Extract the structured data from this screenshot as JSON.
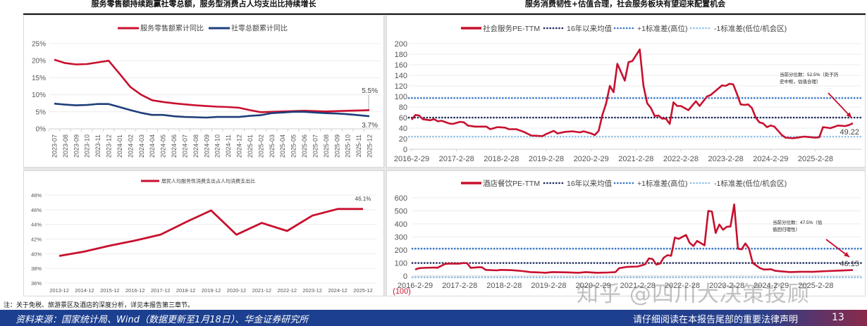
{
  "titles": {
    "left": "服务零售额持续跑赢社零总额，服务型消费占人均支出比持续增长",
    "right": "服务消费韧性+估值合理，社会服务板块有望迎来配置机会"
  },
  "note": "注：关于免税、旅游景区及酒店的深度分析，详见本报告第三章节。",
  "footer": {
    "source": "资料来源：国家统计局、Wind（数据更新至1月18日）、华金证券研究所",
    "legal": "请仔细阅读在本报告尾部的重要法律声明",
    "page_number": "13"
  },
  "watermark": "知乎 @四川大决策投顾",
  "colors": {
    "red": "#c8102e",
    "navy": "#1f3f7a",
    "mean": "#1b2a5c",
    "plus_sd": "#3a78c9",
    "minus_sd": "#8fc0e8"
  },
  "chart_data": [
    {
      "type": "line",
      "categories": [
        "2023-07",
        "2023-08",
        "2023-09",
        "2023-10",
        "2023-11",
        "2023-12",
        "2024-01",
        "2024-02",
        "2024-03",
        "2024-04",
        "2024-05",
        "2024-06",
        "2024-07",
        "2024-08",
        "2024-09",
        "2024-10",
        "2024-11",
        "2024-12",
        "2025-01",
        "2025-02",
        "2025-03",
        "2025-04",
        "2025-05",
        "2025-06",
        "2025-07",
        "2025-08",
        "2025-09",
        "2025-10",
        "2025-11",
        "2025-12"
      ],
      "series": [
        {
          "name": "服务零售额累计同比",
          "color": "#c8102e",
          "values": [
            20.3,
            19.3,
            18.9,
            19.0,
            19.5,
            20.0,
            16.2,
            12.3,
            10.0,
            8.4,
            7.9,
            7.5,
            7.2,
            6.9,
            6.7,
            6.5,
            6.4,
            6.2,
            5.5,
            4.9,
            5.0,
            5.1,
            5.2,
            5.3,
            5.2,
            5.1,
            5.2,
            5.3,
            5.4,
            5.5
          ]
        },
        {
          "name": "社零总额累计同比",
          "color": "#1f3f7a",
          "values": [
            7.4,
            7.1,
            6.9,
            7.0,
            7.3,
            7.3,
            6.4,
            5.5,
            4.7,
            4.1,
            4.1,
            3.7,
            3.5,
            3.4,
            3.3,
            3.5,
            3.5,
            3.5,
            3.8,
            4.0,
            4.6,
            4.8,
            5.0,
            5.0,
            4.8,
            4.6,
            4.5,
            4.3,
            4.0,
            3.7
          ]
        }
      ],
      "yticks": [
        "0%",
        "5%",
        "10%",
        "15%",
        "20%",
        "25%"
      ],
      "ylim": [
        0,
        25
      ],
      "grid": true,
      "legend": "top",
      "annotations": [
        "5.5%",
        "3.7%"
      ]
    },
    {
      "type": "line",
      "categories": [
        "2013-12",
        "2014-12",
        "2015-12",
        "2016-12",
        "2017-12",
        "2018-12",
        "2019-12",
        "2020-12",
        "2021-12",
        "2022-12",
        "2023-12",
        "2024-12",
        "2025-12"
      ],
      "series": [
        {
          "name": "居民人均服务性消费支出占人均消费支出比",
          "color": "#c8102e",
          "values": [
            39.7,
            40.3,
            41.1,
            41.8,
            42.6,
            44.3,
            45.9,
            42.6,
            44.2,
            43.1,
            45.2,
            46.1,
            46.1
          ]
        }
      ],
      "yticks": [
        "36%",
        "38%",
        "40%",
        "42%",
        "44%",
        "46%",
        "48%"
      ],
      "ylim": [
        36,
        48
      ],
      "grid": true,
      "legend": "top",
      "annotations": [
        "46.1%"
      ]
    },
    {
      "type": "line",
      "xticks": [
        "2016-2-29",
        "2017-2-28",
        "2018-2-28",
        "2019-2-28",
        "2020-2-29",
        "2021-2-28",
        "2022-2-28",
        "2023-2-28",
        "2024-2-29",
        "2025-2-28"
      ],
      "yticks": [
        "0",
        "20",
        "40",
        "60",
        "80",
        "100",
        "120",
        "140",
        "160",
        "180",
        "200"
      ],
      "ylim": [
        0,
        200
      ],
      "grid": true,
      "legend": "top",
      "series": [
        {
          "name": "社会服务PE-TTM",
          "color": "#c8102e",
          "points": [
            [
              "2016-02",
              56
            ],
            [
              "2016-03",
              65
            ],
            [
              "2016-04",
              64
            ],
            [
              "2016-05",
              57
            ],
            [
              "2016-07",
              55
            ],
            [
              "2016-08",
              57
            ],
            [
              "2016-09",
              53
            ],
            [
              "2016-10",
              54
            ],
            [
              "2016-12",
              49
            ],
            [
              "2017-01",
              48
            ],
            [
              "2017-03",
              52
            ],
            [
              "2017-04",
              51
            ],
            [
              "2017-05",
              45
            ],
            [
              "2017-07",
              43
            ],
            [
              "2017-10",
              43
            ],
            [
              "2017-11",
              38
            ],
            [
              "2018-01",
              42
            ],
            [
              "2018-03",
              41
            ],
            [
              "2018-04",
              38
            ],
            [
              "2018-06",
              38
            ],
            [
              "2018-08",
              33
            ],
            [
              "2018-10",
              26
            ],
            [
              "2019-01",
              25
            ],
            [
              "2019-02",
              29
            ],
            [
              "2019-04",
              35
            ],
            [
              "2019-05",
              30
            ],
            [
              "2019-07",
              33
            ],
            [
              "2019-09",
              34
            ],
            [
              "2019-11",
              32
            ],
            [
              "2019-12",
              34
            ],
            [
              "2020-02",
              30
            ],
            [
              "2020-03",
              27
            ],
            [
              "2020-04",
              35
            ],
            [
              "2020-05",
              65
            ],
            [
              "2020-06",
              87
            ],
            [
              "2020-07",
              120
            ],
            [
              "2020-08",
              108
            ],
            [
              "2020-09",
              162
            ],
            [
              "2020-11",
              130
            ],
            [
              "2020-12",
              165
            ],
            [
              "2021-01",
              167
            ],
            [
              "2021-03",
              189
            ],
            [
              "2021-04",
              120
            ],
            [
              "2021-05",
              87
            ],
            [
              "2021-06",
              78
            ],
            [
              "2021-07",
              63
            ],
            [
              "2021-08",
              64
            ],
            [
              "2021-09",
              58
            ],
            [
              "2021-10",
              58
            ],
            [
              "2021-11",
              48
            ],
            [
              "2021-12",
              89
            ],
            [
              "2022-01",
              82
            ],
            [
              "2022-02",
              82
            ],
            [
              "2022-04",
              74
            ],
            [
              "2022-06",
              91
            ],
            [
              "2022-07",
              82
            ],
            [
              "2022-09",
              100
            ],
            [
              "2022-10",
              103
            ],
            [
              "2023-01",
              121
            ],
            [
              "2023-02",
              120
            ],
            [
              "2023-03",
              124
            ],
            [
              "2023-04",
              123
            ],
            [
              "2023-05",
              105
            ],
            [
              "2023-06",
              85
            ],
            [
              "2023-07",
              84
            ],
            [
              "2023-08",
              85
            ],
            [
              "2023-09",
              78
            ],
            [
              "2023-10",
              60
            ],
            [
              "2023-11",
              51
            ],
            [
              "2023-12",
              49
            ],
            [
              "2024-01",
              42
            ],
            [
              "2024-02",
              45
            ],
            [
              "2024-03",
              43
            ],
            [
              "2024-05",
              27
            ],
            [
              "2024-06",
              22
            ],
            [
              "2024-08",
              21
            ],
            [
              "2024-11",
              24
            ],
            [
              "2025-02",
              22
            ],
            [
              "2025-03",
              23
            ],
            [
              "2025-04",
              42
            ],
            [
              "2025-06",
              40
            ],
            [
              "2025-08",
              45
            ],
            [
              "2025-10",
              44
            ],
            [
              "2025-11",
              46
            ],
            [
              "2025-12",
              49.22
            ]
          ]
        },
        {
          "name": "16年以来均值",
          "color": "#1b2a5c",
          "style": "dotted",
          "value": 60
        },
        {
          "name": "+1标准差(高位)",
          "color": "#3a78c9",
          "style": "dotted",
          "value": 97
        },
        {
          "name": "-1标准差(低位/机会区)",
          "color": "#8fc0e8",
          "style": "dotted",
          "value": 24
        }
      ],
      "annotations": [
        "当前分位数：52.5%（处于历",
        "史中枢，估值合理）",
        "49.22"
      ]
    },
    {
      "type": "line",
      "xticks": [
        "2016-2-29",
        "2017-2-28",
        "2018-2-28",
        "2019-2-28",
        "2020-2-29",
        "2021-2-28",
        "2022-2-28",
        "2023-2-28",
        "2024-2-29",
        "2025-2-28"
      ],
      "yticks": [
        "0",
        "100",
        "200",
        "300",
        "400",
        "500",
        "600"
      ],
      "extra_ytick": "(100)",
      "ylim": [
        0,
        600
      ],
      "grid": true,
      "legend": "top",
      "series": [
        {
          "name": "酒店餐饮PE-TTM",
          "color": "#c8102e",
          "points": [
            [
              "2016-02",
              50
            ],
            [
              "2016-03",
              60
            ],
            [
              "2016-04",
              62
            ],
            [
              "2016-07",
              65
            ],
            [
              "2016-08",
              63
            ],
            [
              "2016-10",
              92
            ],
            [
              "2016-11",
              95
            ],
            [
              "2017-02",
              95
            ],
            [
              "2017-03",
              100
            ],
            [
              "2017-04",
              98
            ],
            [
              "2017-05",
              62
            ],
            [
              "2017-07",
              67
            ],
            [
              "2017-08",
              67
            ],
            [
              "2017-09",
              47
            ],
            [
              "2017-12",
              43
            ],
            [
              "2018-01",
              47
            ],
            [
              "2018-04",
              45
            ],
            [
              "2018-07",
              38
            ],
            [
              "2018-09",
              30
            ],
            [
              "2018-12",
              27
            ],
            [
              "2019-01",
              25
            ],
            [
              "2019-03",
              30
            ],
            [
              "2019-07",
              28
            ],
            [
              "2019-10",
              25
            ],
            [
              "2019-12",
              30
            ],
            [
              "2020-03",
              25
            ],
            [
              "2020-06",
              27
            ],
            [
              "2020-08",
              30
            ],
            [
              "2020-09",
              60
            ],
            [
              "2020-11",
              70
            ],
            [
              "2021-02",
              73
            ],
            [
              "2021-04",
              90
            ],
            [
              "2021-05",
              135
            ],
            [
              "2021-06",
              130
            ],
            [
              "2021-07",
              88
            ],
            [
              "2021-08",
              95
            ],
            [
              "2021-09",
              140
            ],
            [
              "2021-10",
              160
            ],
            [
              "2021-11",
              155
            ],
            [
              "2021-12",
              295
            ],
            [
              "2022-01",
              285
            ],
            [
              "2022-03",
              315
            ],
            [
              "2022-04",
              255
            ],
            [
              "2022-05",
              230
            ],
            [
              "2022-06",
              270
            ],
            [
              "2022-08",
              235
            ],
            [
              "2022-09",
              500
            ],
            [
              "2022-10",
              495
            ],
            [
              "2022-11",
              330
            ],
            [
              "2022-12",
              395
            ],
            [
              "2023-01",
              355
            ],
            [
              "2023-02",
              378
            ],
            [
              "2023-03",
              380
            ],
            [
              "2023-04",
              550
            ],
            [
              "2023-05",
              210
            ],
            [
              "2023-06",
              205
            ],
            [
              "2023-07",
              250
            ],
            [
              "2023-08",
              210
            ],
            [
              "2023-09",
              100
            ],
            [
              "2023-11",
              60
            ],
            [
              "2023-12",
              50
            ],
            [
              "2024-02",
              52
            ],
            [
              "2024-03",
              40
            ],
            [
              "2024-07",
              30
            ],
            [
              "2024-10",
              33
            ],
            [
              "2025-01",
              32
            ],
            [
              "2025-05",
              38
            ],
            [
              "2025-09",
              42
            ],
            [
              "2025-12",
              46.15
            ]
          ]
        },
        {
          "name": "16年以来均值",
          "color": "#1b2a5c",
          "style": "dotted",
          "value": 100
        },
        {
          "name": "+1标准差(高位)",
          "color": "#3a78c9",
          "style": "dotted",
          "value": 210
        },
        {
          "name": "-1标准差(低位/机会区)",
          "color": "#8fc0e8",
          "style": "dotted",
          "value": -10
        }
      ],
      "annotations": [
        "当前分位数：47.5%（估",
        "值回归理性）",
        "46.15"
      ]
    }
  ]
}
